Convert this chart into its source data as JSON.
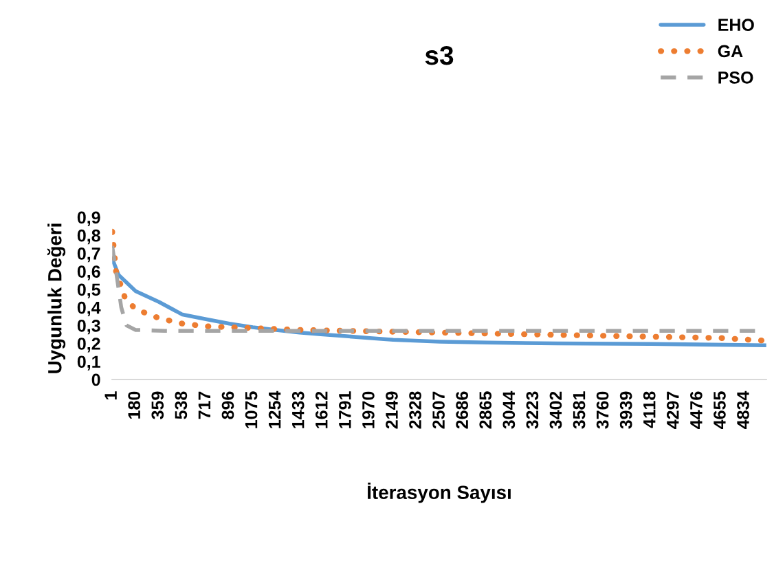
{
  "chart_data": {
    "type": "line",
    "title": "s3",
    "xlabel": "İterasyon Sayısı",
    "ylabel": "Uygunluk Değeri",
    "xlim": [
      1,
      5000
    ],
    "xticks": [
      1,
      180,
      359,
      538,
      717,
      896,
      1075,
      1254,
      1433,
      1612,
      1791,
      1970,
      2149,
      2328,
      2507,
      2686,
      2865,
      3044,
      3223,
      3402,
      3581,
      3760,
      3939,
      4118,
      4297,
      4476,
      4655,
      4834
    ],
    "ylim": [
      0,
      0.9
    ],
    "yticks": [
      {
        "value": 0,
        "label": "0"
      },
      {
        "value": 0.1,
        "label": "0,1"
      },
      {
        "value": 0.2,
        "label": "0,2"
      },
      {
        "value": 0.3,
        "label": "0,3"
      },
      {
        "value": 0.4,
        "label": "0,4"
      },
      {
        "value": 0.5,
        "label": "0,5"
      },
      {
        "value": 0.6,
        "label": "0,6"
      },
      {
        "value": 0.7,
        "label": "0,7"
      },
      {
        "value": 0.8,
        "label": "0,8"
      },
      {
        "value": 0.9,
        "label": "0,9"
      }
    ],
    "grid": false,
    "legend": "top right",
    "series": [
      {
        "name": "EHO",
        "color": "#5b9bd5",
        "line_style": "solid",
        "x": [
          1,
          50,
          180,
          359,
          538,
          717,
          896,
          1075,
          1254,
          1433,
          1612,
          1791,
          1970,
          2149,
          2507,
          2865,
          3402,
          4118,
          5000
        ],
        "values": [
          0.67,
          0.58,
          0.49,
          0.43,
          0.36,
          0.335,
          0.31,
          0.29,
          0.275,
          0.26,
          0.25,
          0.24,
          0.23,
          0.22,
          0.21,
          0.205,
          0.2,
          0.197,
          0.19
        ]
      },
      {
        "name": "GA",
        "color": "#ed7d31",
        "line_style": "dotted",
        "x": [
          1,
          30,
          100,
          180,
          359,
          538,
          717,
          896,
          1075,
          1433,
          2149,
          2865,
          3581,
          4297,
          4655,
          5000
        ],
        "values": [
          0.82,
          0.6,
          0.45,
          0.39,
          0.34,
          0.31,
          0.295,
          0.29,
          0.285,
          0.275,
          0.265,
          0.255,
          0.245,
          0.235,
          0.23,
          0.215
        ]
      },
      {
        "name": "PSO",
        "color": "#a5a5a5",
        "line_style": "dashed",
        "x": [
          1,
          30,
          70,
          110,
          180,
          400,
          5000
        ],
        "values": [
          0.74,
          0.6,
          0.4,
          0.3,
          0.275,
          0.27,
          0.27
        ]
      }
    ]
  }
}
